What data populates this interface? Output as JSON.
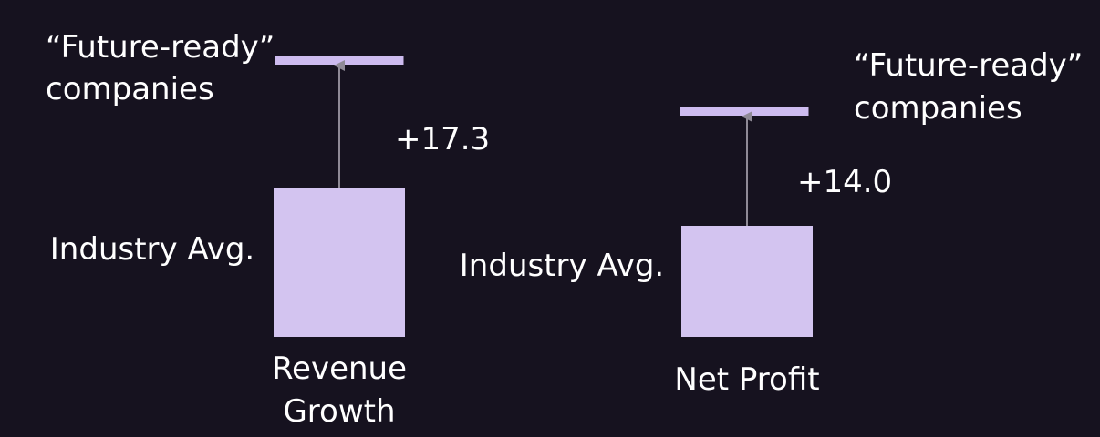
{
  "chart_data": [
    {
      "type": "bar",
      "category": [
        "Revenue",
        "Growth"
      ],
      "baseline_label": "Industry Avg.",
      "target_label": [
        "“Future-ready”",
        "companies"
      ],
      "delta_label": "+17.3",
      "delta": 17.3
    },
    {
      "type": "bar",
      "category": [
        "Net Profit"
      ],
      "baseline_label": "Industry Avg.",
      "target_label": [
        "“Future-ready”",
        "companies"
      ],
      "delta_label": "+14.0",
      "delta": 14.0
    }
  ],
  "colors": {
    "background": "#16121f",
    "bar": "#d3c4f0",
    "target": "#cdbbef",
    "arrow": "#8f8a96",
    "text": "#ffffff"
  }
}
